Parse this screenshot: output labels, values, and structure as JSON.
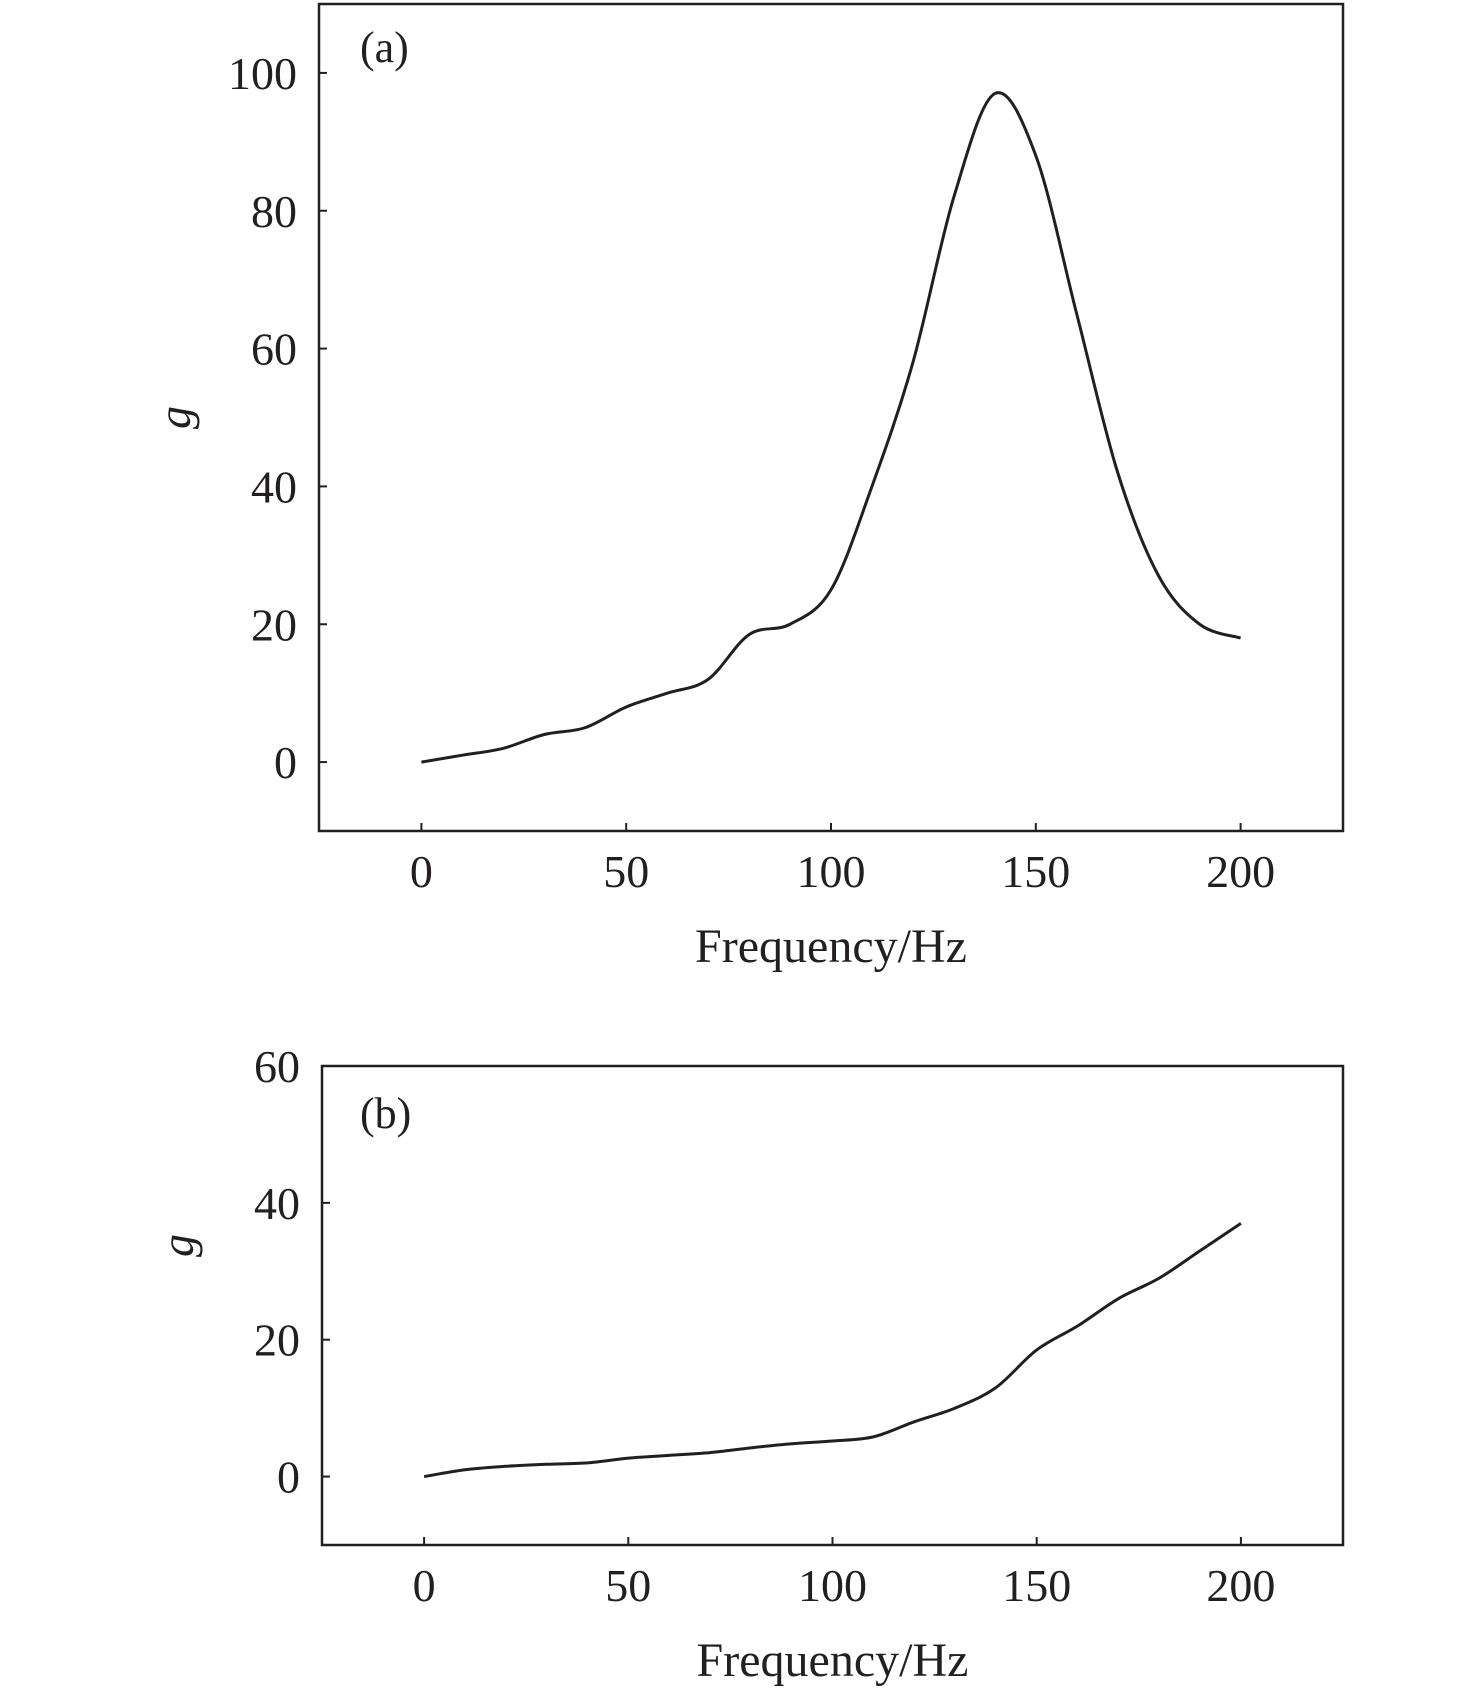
{
  "chart_data": [
    {
      "type": "line",
      "panel_label": "(a)",
      "xlabel": "Frequency/Hz",
      "ylabel": "g",
      "xlim": [
        -25,
        225
      ],
      "ylim": [
        -10,
        110
      ],
      "xticks": [
        0,
        50,
        100,
        150,
        200
      ],
      "yticks": [
        0,
        20,
        40,
        60,
        80,
        100
      ],
      "grid": false,
      "line_color": "#231f20",
      "series": [
        {
          "name": "g",
          "x": [
            0,
            10,
            20,
            30,
            40,
            50,
            60,
            70,
            80,
            90,
            100,
            110,
            120,
            130,
            140,
            150,
            160,
            170,
            180,
            190,
            200
          ],
          "y": [
            0,
            1,
            2,
            4,
            5,
            8,
            10,
            12,
            18.5,
            20,
            25,
            40,
            58,
            82,
            97,
            88,
            65,
            42,
            27,
            20,
            18
          ]
        }
      ]
    },
    {
      "type": "line",
      "panel_label": "(b)",
      "xlabel": "Frequency/Hz",
      "ylabel": "g",
      "xlim": [
        -25,
        225
      ],
      "ylim": [
        -10,
        60
      ],
      "xticks": [
        0,
        50,
        100,
        150,
        200
      ],
      "yticks": [
        0,
        20,
        40,
        60
      ],
      "grid": false,
      "line_color": "#231f20",
      "series": [
        {
          "name": "g",
          "x": [
            0,
            10,
            20,
            30,
            40,
            50,
            60,
            70,
            80,
            90,
            100,
            110,
            120,
            130,
            140,
            150,
            160,
            170,
            180,
            190,
            200
          ],
          "y": [
            0,
            1,
            1.5,
            1.8,
            2,
            2.7,
            3.1,
            3.5,
            4.2,
            4.8,
            5.2,
            5.8,
            8,
            10,
            13,
            18.5,
            22,
            26,
            29,
            33,
            37
          ]
        }
      ]
    }
  ]
}
